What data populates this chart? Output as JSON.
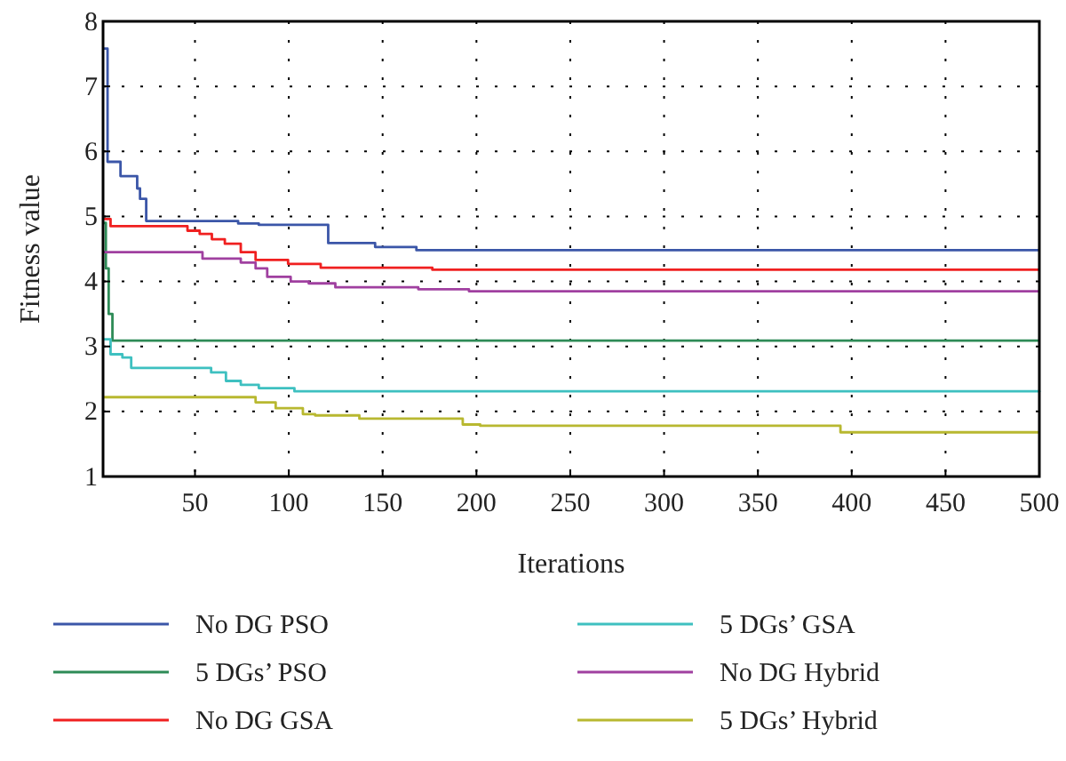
{
  "chart_data": {
    "type": "step",
    "xlabel": "Iterations",
    "ylabel": "Fitness value",
    "xlim": [
      1,
      500
    ],
    "ylim": [
      1,
      8
    ],
    "xticks": [
      50,
      100,
      150,
      200,
      250,
      300,
      350,
      400,
      450,
      500
    ],
    "yticks": [
      1,
      2,
      3,
      4,
      5,
      6,
      7,
      8
    ],
    "grid": true,
    "legend": "bottom",
    "line_style": "solid",
    "series": [
      {
        "name": "No DG PSO",
        "color": "#3b56a8",
        "x": [
          1,
          3.4,
          10.3,
          19.2,
          20.7,
          24,
          73,
          84,
          121,
          146,
          168,
          500
        ],
        "values": [
          7.58,
          5.84,
          5.62,
          5.43,
          5.27,
          4.93,
          4.89,
          4.87,
          4.59,
          4.53,
          4.48,
          4.48
        ]
      },
      {
        "name": "5 DGs’ PSO",
        "color": "#2e8b57",
        "x": [
          1,
          2.5,
          4,
          6,
          500
        ],
        "values": [
          4.9,
          4.2,
          3.5,
          3.09,
          3.09
        ]
      },
      {
        "name": "No DG GSA",
        "color": "#f02020",
        "x": [
          1,
          5,
          41.3,
          46,
          52.5,
          59,
          65.9,
          74.4,
          82.3,
          99.6,
          117,
          176.5,
          500
        ],
        "values": [
          4.96,
          4.85,
          4.85,
          4.78,
          4.73,
          4.65,
          4.58,
          4.45,
          4.33,
          4.27,
          4.21,
          4.18,
          4.18
        ]
      },
      {
        "name": "5 DGs’ GSA",
        "color": "#3ec0c0",
        "x": [
          1,
          5,
          11.3,
          16,
          52.3,
          58.6,
          66.5,
          74.4,
          84,
          103,
          500
        ],
        "values": [
          3.11,
          2.88,
          2.83,
          2.67,
          2.67,
          2.6,
          2.47,
          2.41,
          2.36,
          2.31,
          2.3
        ]
      },
      {
        "name": "No DG Hybrid",
        "color": "#a040a0",
        "x": [
          1,
          54,
          74.4,
          82.3,
          88.5,
          101,
          110.6,
          124.8,
          169,
          196,
          500
        ],
        "values": [
          4.45,
          4.35,
          4.29,
          4.2,
          4.07,
          4.0,
          3.97,
          3.91,
          3.88,
          3.85,
          3.85
        ]
      },
      {
        "name": "5 DGs’ Hybrid",
        "color": "#b8b830",
        "x": [
          1,
          82.3,
          93,
          107.5,
          114,
          137.6,
          192.7,
          202,
          394,
          500
        ],
        "values": [
          2.22,
          2.14,
          2.05,
          1.96,
          1.94,
          1.89,
          1.8,
          1.78,
          1.68,
          1.68
        ]
      }
    ]
  }
}
